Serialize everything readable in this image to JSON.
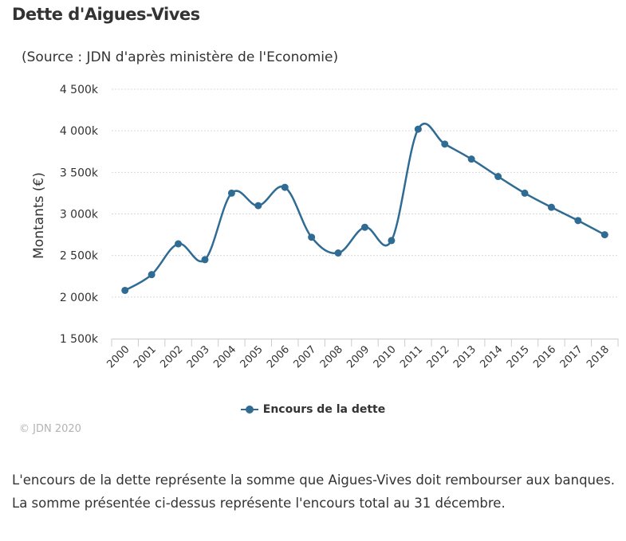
{
  "title": "Dette d'Aigues-Vives",
  "subtitle": "(Source : JDN d'après ministère de l'Economie)",
  "credit": "© JDN 2020",
  "description": "L'encours de la dette représente la somme que Aigues-Vives doit rembourser aux banques. La somme présentée ci-dessus représente l'encours total au 31 décembre.",
  "legend_label": "Encours de la dette",
  "colors": {
    "series": "#2f6b93",
    "grid": "#d9d9d9",
    "text": "#333333"
  },
  "chart_data": {
    "type": "line",
    "title": "Dette d'Aigues-Vives",
    "subtitle": "(Source : JDN d'après ministère de l'Economie)",
    "ylabel": "Montants (€)",
    "xlabel": "",
    "categories": [
      "2000",
      "2001",
      "2002",
      "2003",
      "2004",
      "2005",
      "2006",
      "2007",
      "2008",
      "2009",
      "2010",
      "2011",
      "2012",
      "2013",
      "2014",
      "2015",
      "2016",
      "2017",
      "2018"
    ],
    "series": [
      {
        "name": "Encours de la dette",
        "values": [
          2080,
          2270,
          2640,
          2450,
          3250,
          3100,
          3320,
          2720,
          2530,
          2840,
          2680,
          4020,
          3840,
          3660,
          3450,
          3250,
          3080,
          2920,
          2750
        ]
      }
    ],
    "ylim": [
      1500,
      4500
    ],
    "yticks": [
      1500,
      2000,
      2500,
      3000,
      3500,
      4000,
      4500
    ],
    "ytick_labels": [
      "1 500k",
      "2 000k",
      "2 500k",
      "3 000k",
      "3 500k",
      "4 000k",
      "4 500k"
    ],
    "grid": true,
    "legend_position": "bottom",
    "smooth": true
  }
}
